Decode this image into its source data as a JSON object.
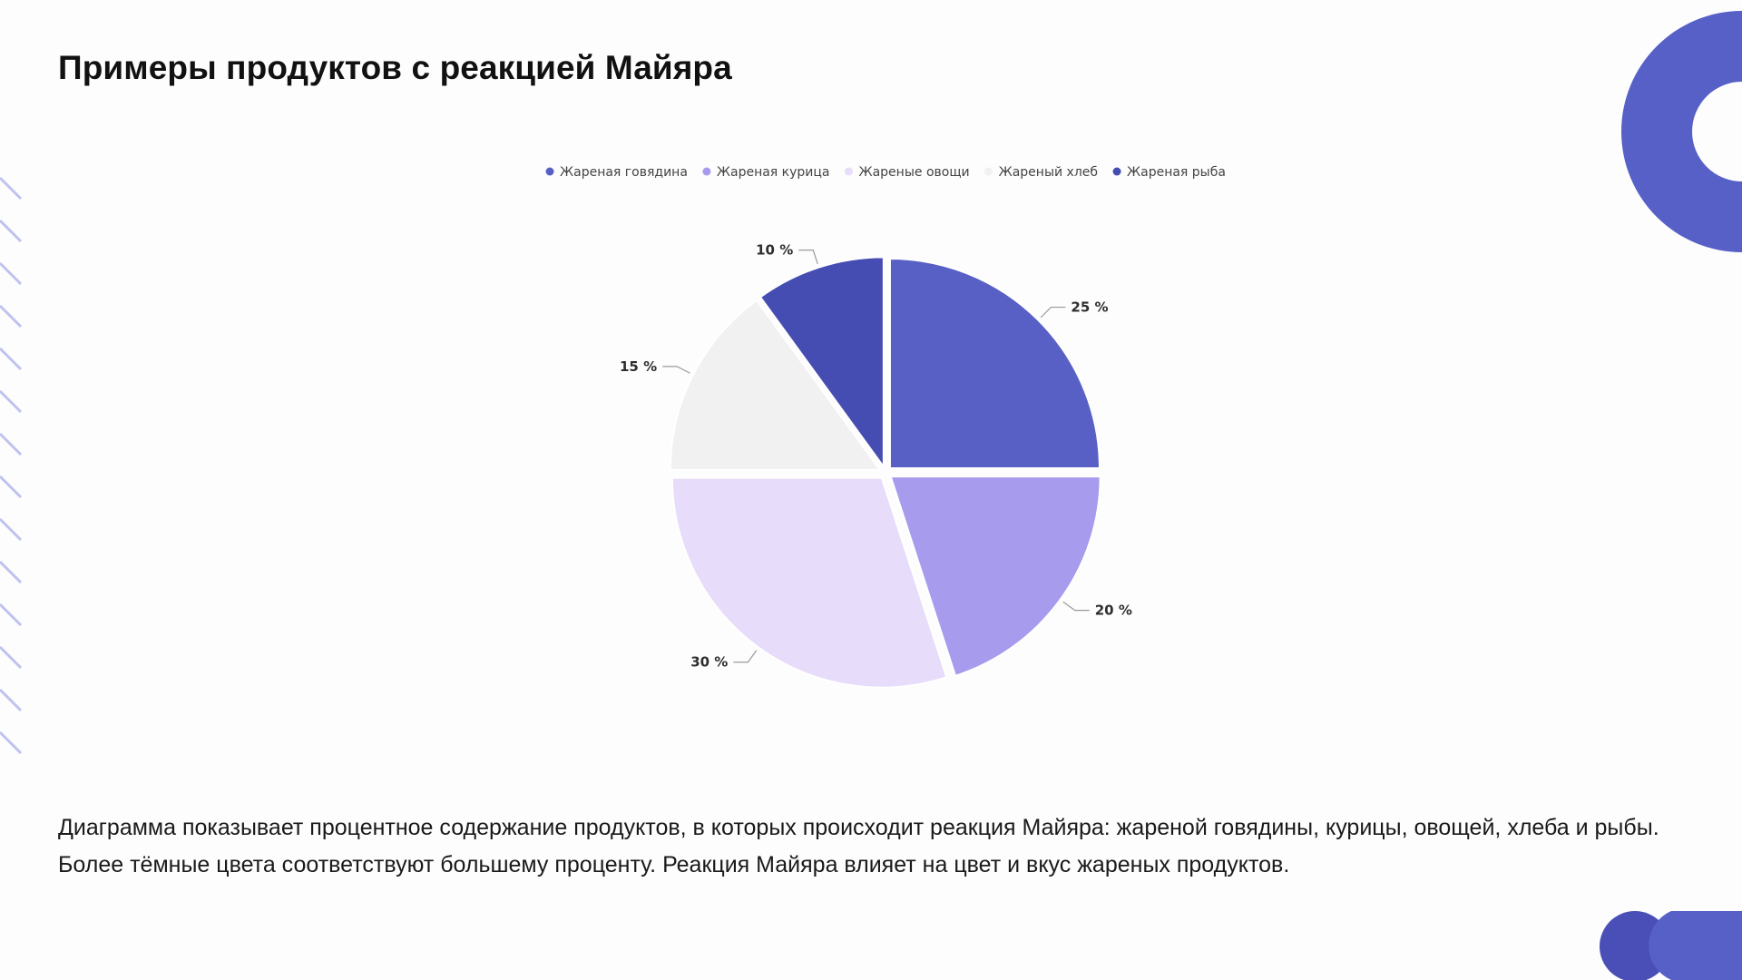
{
  "page": {
    "title": "Примеры продуктов с реакцией Майяра",
    "description": "Диаграмма показывает процентное содержание продуктов, в которых происходит реакция Майяра: жареной говядины, курицы, овощей, хлеба и рыбы. Более тёмные цвета соответствуют большему проценту. Реакция Майяра влияет на цвет и вкус жареных продуктов."
  },
  "colors": {
    "accent": "#5660c7",
    "dark_accent": "#4a4fb8"
  },
  "chart_data": {
    "type": "pie",
    "title": "",
    "legend_position": "top",
    "label_format": "{v} %",
    "series": [
      {
        "name": "Жареная говядина",
        "value": 25,
        "label": "25 %",
        "color": "#5860c6"
      },
      {
        "name": "Жареная курица",
        "value": 20,
        "label": "20 %",
        "color": "#a79bee"
      },
      {
        "name": "Жареные овощи",
        "value": 30,
        "label": "30 %",
        "color": "#e7dcf9"
      },
      {
        "name": "Жареный хлеб",
        "value": 15,
        "label": "15 %",
        "color": "#f1f1f1"
      },
      {
        "name": "Жареная рыба",
        "value": 10,
        "label": "10 %",
        "color": "#464db2"
      }
    ]
  }
}
